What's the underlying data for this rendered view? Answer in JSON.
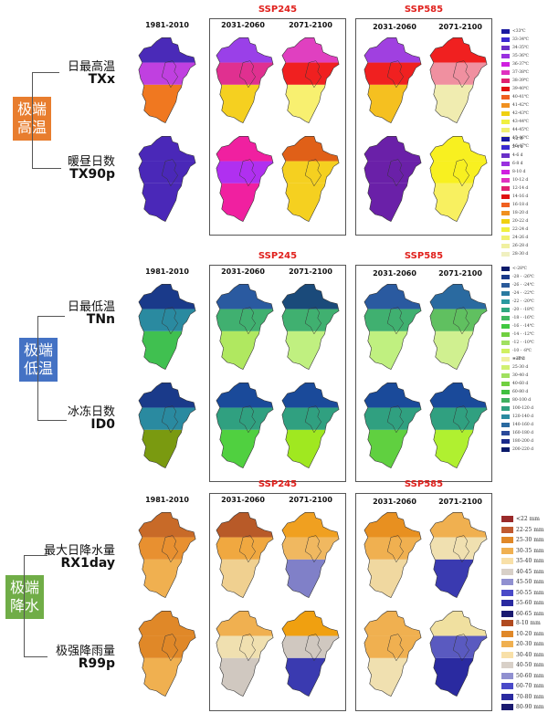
{
  "periods": {
    "baseline": "1981-2010",
    "mid": "2031-2060",
    "late": "2071-2100"
  },
  "scenarios": [
    "SSP245",
    "SSP585"
  ],
  "sections": [
    {
      "id": "heat",
      "category": "极端高温",
      "category_line1": "极端",
      "category_line2": "高温",
      "category_color": "#e87d2e",
      "indices": [
        {
          "cn": "日最高温",
          "en": "TXx",
          "maps": {
            "baseline": [
              "#4a2ab8",
              "#c040e0",
              "#f07820"
            ],
            "ssp245_mid": [
              "#9a40e8",
              "#e03090",
              "#f5d020"
            ],
            "ssp245_late": [
              "#e040c0",
              "#f02020",
              "#f8f070"
            ],
            "ssp585_mid": [
              "#a040e0",
              "#f02020",
              "#f5c020"
            ],
            "ssp585_late": [
              "#f02020",
              "#f090a0",
              "#f0ecb0"
            ]
          }
        },
        {
          "cn": "暖昼日数",
          "en": "TX90p",
          "maps": {
            "baseline": [
              "#4a28b8",
              "#4a28b8",
              "#4a28b8"
            ],
            "ssp245_mid": [
              "#f020a0",
              "#b030f0",
              "#f020a0"
            ],
            "ssp245_late": [
              "#e06018",
              "#f5d020",
              "#f5d020"
            ],
            "ssp585_mid": [
              "#6a20a8",
              "#6a20a8",
              "#6a20a8"
            ],
            "ssp585_late": [
              "#f8f020",
              "#f8f020",
              "#f8f060"
            ]
          }
        }
      ],
      "legends": [
        {
          "items": [
            {
              "label": "<33℃",
              "color": "#1a1aa0"
            },
            {
              "label": "33-34℃",
              "color": "#3a2ad0"
            },
            {
              "label": "34-35℃",
              "color": "#6a30c8"
            },
            {
              "label": "35-36℃",
              "color": "#9a30e0"
            },
            {
              "label": "36-37℃",
              "color": "#d020e0"
            },
            {
              "label": "37-38℃",
              "color": "#e030c0"
            },
            {
              "label": "38-39℃",
              "color": "#e02070"
            },
            {
              "label": "39-40℃",
              "color": "#e01010"
            },
            {
              "label": "40-41℃",
              "color": "#f06020"
            },
            {
              "label": "41-42℃",
              "color": "#f09020"
            },
            {
              "label": "42-43℃",
              "color": "#f0d010"
            },
            {
              "label": "43-44℃",
              "color": "#f0f040"
            },
            {
              "label": "44-45℃",
              "color": "#f0f070"
            },
            {
              "label": "45-46℃",
              "color": "#f0f0a0"
            },
            {
              "label": "46-47℃",
              "color": "#f0f0c0"
            }
          ]
        },
        {
          "items": [
            {
              "label": "<2 d",
              "color": "#1a1aa0"
            },
            {
              "label": "2-4 d",
              "color": "#3a2ad0"
            },
            {
              "label": "4-6 d",
              "color": "#6a30c8"
            },
            {
              "label": "6-8 d",
              "color": "#9a30e0"
            },
            {
              "label": "8-10 d",
              "color": "#d020e0"
            },
            {
              "label": "10-12 d",
              "color": "#e030c0"
            },
            {
              "label": "12-14 d",
              "color": "#e02070"
            },
            {
              "label": "14-16 d",
              "color": "#e01010"
            },
            {
              "label": "16-18 d",
              "color": "#f06020"
            },
            {
              "label": "18-20 d",
              "color": "#f09020"
            },
            {
              "label": "20-22 d",
              "color": "#f0d010"
            },
            {
              "label": "22-24 d",
              "color": "#f0f040"
            },
            {
              "label": "24-26 d",
              "color": "#f0f070"
            },
            {
              "label": "26-28 d",
              "color": "#f0f0a0"
            },
            {
              "label": "28-30 d",
              "color": "#f0f0c0"
            }
          ]
        }
      ]
    },
    {
      "id": "cold",
      "category": "极端低温",
      "category_line1": "极端",
      "category_line2": "低温",
      "category_color": "#4472c4",
      "indices": [
        {
          "cn": "日最低温",
          "en": "TNn",
          "maps": {
            "baseline": [
              "#1a3a8a",
              "#2a8aa0",
              "#40c050"
            ],
            "ssp245_mid": [
              "#2a5aa0",
              "#40b070",
              "#b0e860"
            ],
            "ssp245_late": [
              "#1a4a7a",
              "#40b070",
              "#c0f080"
            ],
            "ssp585_mid": [
              "#2a5aa0",
              "#40b070",
              "#c0f080"
            ],
            "ssp585_late": [
              "#2a6aa0",
              "#60c060",
              "#d0f090"
            ]
          }
        },
        {
          "cn": "冰冻日数",
          "en": "ID0",
          "maps": {
            "baseline": [
              "#1a3a8a",
              "#2a8aa0",
              "#7a9a10"
            ],
            "ssp245_mid": [
              "#1a4a9a",
              "#30a080",
              "#50d040"
            ],
            "ssp245_late": [
              "#1a4a9a",
              "#30a080",
              "#a0e820"
            ],
            "ssp585_mid": [
              "#1a4a9a",
              "#30a080",
              "#60d040"
            ],
            "ssp585_late": [
              "#1a4a9a",
              "#30a080",
              "#b0f030"
            ]
          }
        }
      ],
      "legends": [
        {
          "items": [
            {
              "label": "<-28℃",
              "color": "#0a1a6a"
            },
            {
              "label": "-28 - -26℃",
              "color": "#1a3a8a"
            },
            {
              "label": "-26 - -24℃",
              "color": "#2a5a9a"
            },
            {
              "label": "-24 - -22℃",
              "color": "#2a7aa0"
            },
            {
              "label": "-22 - -20℃",
              "color": "#2a9aa0"
            },
            {
              "label": "-20 - -18℃",
              "color": "#30a880"
            },
            {
              "label": "-18 - -16℃",
              "color": "#40b860"
            },
            {
              "label": "-16 - -14℃",
              "color": "#40c840"
            },
            {
              "label": "-14 - -12℃",
              "color": "#70d040"
            },
            {
              "label": "-12 - -10℃",
              "color": "#a0e060"
            },
            {
              "label": "-10 - -8℃",
              "color": "#d0f060"
            },
            {
              "label": ">-8℃",
              "color": "#f0f080"
            }
          ]
        },
        {
          "items": [
            {
              "label": "<25 d",
              "color": "#f0f0a0"
            },
            {
              "label": "25-30 d",
              "color": "#d0f070"
            },
            {
              "label": "30-40 d",
              "color": "#a0e060"
            },
            {
              "label": "40-60 d",
              "color": "#70d040"
            },
            {
              "label": "60-80 d",
              "color": "#40c040"
            },
            {
              "label": "80-100 d",
              "color": "#40b060"
            },
            {
              "label": "100-120 d",
              "color": "#30a080"
            },
            {
              "label": "120-140 d",
              "color": "#2a8aa0"
            },
            {
              "label": "140-160 d",
              "color": "#2a6aa0"
            },
            {
              "label": "160-180 d",
              "color": "#2a4a9a"
            },
            {
              "label": "180-200 d",
              "color": "#1a2a8a"
            },
            {
              "label": "200-220 d",
              "color": "#0a1a6a"
            }
          ]
        }
      ]
    },
    {
      "id": "precip",
      "category": "极端降水",
      "category_line1": "极端",
      "category_line2": "降水",
      "category_color": "#70ad47",
      "indices": [
        {
          "cn": "最大日降水量",
          "en": "RX1day",
          "maps": {
            "baseline": [
              "#c86a28",
              "#e89030",
              "#f0b050"
            ],
            "ssp245_mid": [
              "#b85a28",
              "#f0a840",
              "#f0d090"
            ],
            "ssp245_late": [
              "#f0a020",
              "#f0b860",
              "#8080c8"
            ],
            "ssp585_mid": [
              "#e89020",
              "#f0b050",
              "#f0d8a0"
            ],
            "ssp585_late": [
              "#f0b050",
              "#f0e0b0",
              "#3a3ab0"
            ]
          }
        },
        {
          "cn": "极强降雨量",
          "en": "R99p",
          "maps": {
            "baseline": [
              "#e08828",
              "#e08828",
              "#f0b050"
            ],
            "ssp245_mid": [
              "#f0b050",
              "#f0e0b0",
              "#d0c8c0"
            ],
            "ssp245_late": [
              "#f0a010",
              "#d0c8c0",
              "#3a3ab0"
            ],
            "ssp585_mid": [
              "#f0b050",
              "#f0b050",
              "#f0e0b0"
            ],
            "ssp585_late": [
              "#f0e0a0",
              "#5a5ac0",
              "#2a2aa0"
            ]
          }
        }
      ],
      "legends": [
        {
          "items": [
            {
              "label": "<22 mm",
              "color": "#9a2a2a"
            },
            {
              "label": "22-25 mm",
              "color": "#c05a30"
            },
            {
              "label": "25-30 mm",
              "color": "#e08828"
            },
            {
              "label": "30-35 mm",
              "color": "#f0b050"
            },
            {
              "label": "35-40 mm",
              "color": "#f8e0a8"
            },
            {
              "label": "40-45 mm",
              "color": "#d8d0c8"
            },
            {
              "label": "45-50 mm",
              "color": "#9090d0"
            },
            {
              "label": "50-55 mm",
              "color": "#4a4ac8"
            },
            {
              "label": "55-60 mm",
              "color": "#2a2aa0"
            },
            {
              "label": "60-65 mm",
              "color": "#1a1a70"
            }
          ]
        },
        {
          "items": [
            {
              "label": "8-10 mm",
              "color": "#b04a20"
            },
            {
              "label": "10-20 mm",
              "color": "#e08828"
            },
            {
              "label": "20-30 mm",
              "color": "#f0b050"
            },
            {
              "label": "30-40 mm",
              "color": "#f8e0a8"
            },
            {
              "label": "40-50 mm",
              "color": "#d8d0c8"
            },
            {
              "label": "50-60 mm",
              "color": "#9090d0"
            },
            {
              "label": "60-70 mm",
              "color": "#4a4ac8"
            },
            {
              "label": "70-80 mm",
              "color": "#2a2aa0"
            },
            {
              "label": "80-90 mm",
              "color": "#1a1a70"
            }
          ]
        }
      ]
    }
  ]
}
